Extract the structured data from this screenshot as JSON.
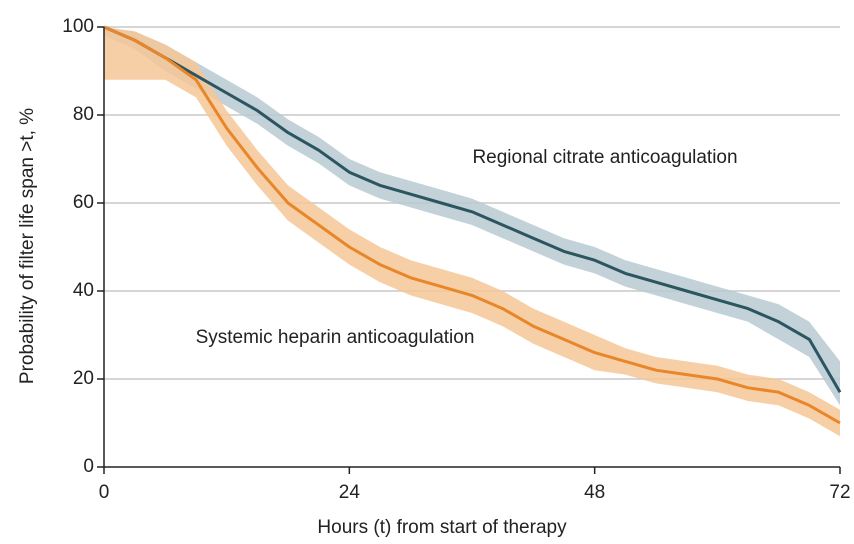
{
  "chart_data": {
    "type": "line",
    "x_label": "Hours (t) from start of therapy",
    "y_label": "Probability of filter life span >t, %",
    "x": [
      0,
      3,
      6,
      9,
      12,
      15,
      18,
      21,
      24,
      27,
      30,
      33,
      36,
      39,
      42,
      45,
      48,
      51,
      54,
      57,
      60,
      63,
      66,
      69,
      72
    ],
    "series": [
      {
        "name": "Regional citrate anticoagulation",
        "color": "#2b5560",
        "band_color": "#b9c9d1",
        "values": [
          100,
          97,
          93,
          89,
          85,
          81,
          76,
          72,
          67,
          64,
          62,
          60,
          58,
          55,
          52,
          49,
          47,
          44,
          42,
          40,
          38,
          36,
          33,
          29,
          17
        ],
        "upper": [
          100,
          99,
          96,
          92,
          88,
          84,
          79,
          75,
          70,
          67,
          65,
          63,
          61,
          58,
          55,
          52,
          50,
          47,
          45,
          43,
          41,
          39,
          37,
          33,
          24
        ],
        "lower": [
          98,
          95,
          90,
          86,
          82,
          78,
          73,
          69,
          64,
          61,
          59,
          57,
          55,
          52,
          49,
          46,
          44,
          41,
          39,
          37,
          35,
          33,
          29,
          25,
          14
        ]
      },
      {
        "name": "Systemic heparin anticoagulation",
        "color": "#e8862a",
        "band_color": "#f6c797",
        "values": [
          100,
          97,
          93,
          88,
          77,
          68,
          60,
          55,
          50,
          46,
          43,
          41,
          39,
          36,
          32,
          29,
          26,
          24,
          22,
          21,
          20,
          18,
          17,
          14,
          10
        ],
        "upper": [
          100,
          99,
          96,
          92,
          81,
          72,
          64,
          59,
          54,
          50,
          47,
          45,
          43,
          40,
          36,
          33,
          30,
          27,
          25,
          24,
          23,
          21,
          20,
          17,
          13
        ],
        "lower": [
          88,
          88,
          88,
          84,
          73,
          64,
          56,
          51,
          46,
          42,
          39,
          37,
          35,
          32,
          28,
          25,
          22,
          21,
          19,
          18,
          17,
          15,
          14,
          11,
          7
        ]
      }
    ],
    "xlim": [
      0,
      72
    ],
    "xticks": [
      0,
      24,
      48,
      72
    ],
    "ylim": [
      0,
      100
    ],
    "yticks": [
      0,
      20,
      40,
      60,
      80,
      100
    ],
    "grid": true
  }
}
